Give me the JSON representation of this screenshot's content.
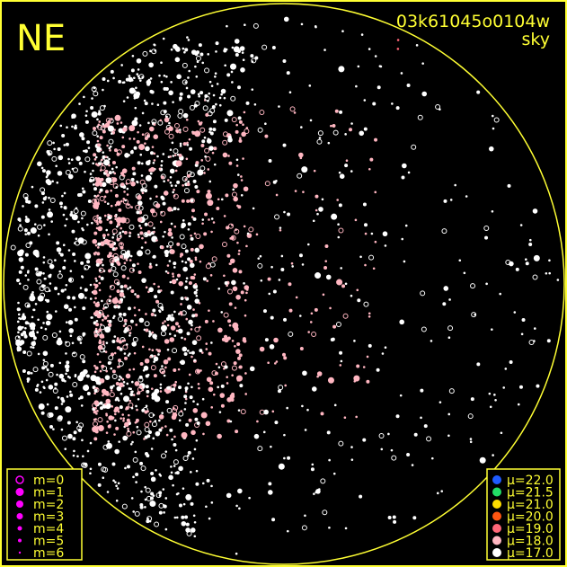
{
  "header": {
    "direction_label": "NE",
    "frame_id": "03k61045o0104w",
    "frame_type": "sky"
  },
  "chart_data": {
    "type": "scatter",
    "description_of_marks": "all-sky star positions; symbol size encodes magnitude, color encodes sky brightness",
    "magnitude_legend": [
      {
        "label": "m=0",
        "symbol": "ring"
      },
      {
        "label": "m=1",
        "symbol": "dot"
      },
      {
        "label": "m=2",
        "symbol": "dot"
      },
      {
        "label": "m=3",
        "symbol": "dot"
      },
      {
        "label": "m=4",
        "symbol": "dot"
      },
      {
        "label": "m=5",
        "symbol": "dot"
      },
      {
        "label": "m=6",
        "symbol": "dot"
      }
    ],
    "mu_legend": [
      {
        "label": "μ=22.0",
        "color": "#1f5bff"
      },
      {
        "label": "μ=21.5",
        "color": "#22dd66"
      },
      {
        "label": "μ=21.0",
        "color": "#ffdd00"
      },
      {
        "label": "μ=20.0",
        "color": "#ff5511"
      },
      {
        "label": "μ=19.0",
        "color": "#ff6677"
      },
      {
        "label": "μ=18.0",
        "color": "#ffb6c1"
      },
      {
        "label": "μ=17.0",
        "color": "#ffffff"
      }
    ],
    "legend_placement": [
      "bottom-left",
      "bottom-right"
    ]
  },
  "colors": {
    "frame": "#ffff33",
    "legend_symbol": "#ff00ff",
    "background": "#000000"
  }
}
